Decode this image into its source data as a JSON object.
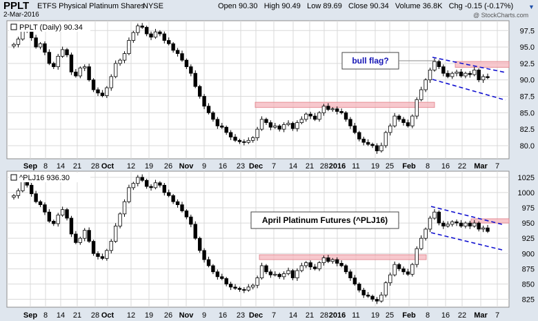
{
  "header": {
    "symbol": "PPLT",
    "name": "ETFS Physical Platinum Shares",
    "exchange": "NYSE",
    "date": "2-Mar-2016",
    "copyright": "@ StockCharts.com",
    "quote": {
      "open_label": "Open",
      "open": "90.30",
      "high_label": "High",
      "high": "90.49",
      "low_label": "Low",
      "low": "89.69",
      "close_label": "Close",
      "close": "90.34",
      "volume_label": "Volume",
      "volume": "36.8K",
      "chg_label": "Chg",
      "chg": "-0.15 (-0.17%)"
    }
  },
  "chart_data": [
    {
      "type": "candlestick",
      "panel_label": "PPLT (Daily) 90.34",
      "ylim": [
        78,
        99
      ],
      "y_ticks": [
        "80.0",
        "82.5",
        "85.0",
        "87.5",
        "90.0",
        "92.5",
        "95.0",
        "97.5"
      ],
      "x_tick_labels": [
        "Sep",
        "8",
        "14",
        "21",
        "28",
        "Oct",
        "12",
        "19",
        "26",
        "Nov",
        "9",
        "16",
        "23",
        "Dec",
        "7",
        "14",
        "21",
        "28",
        "2016",
        "11",
        "19",
        "25",
        "Feb",
        "8",
        "16",
        "22",
        "Mar",
        "7"
      ],
      "closes": [
        95.4,
        96.2,
        97.5,
        97.8,
        96.4,
        95.0,
        95.5,
        94.2,
        92.5,
        92.0,
        93.6,
        94.6,
        93.8,
        91.2,
        90.6,
        91.8,
        92.0,
        90.0,
        88.5,
        88.0,
        87.6,
        88.8,
        90.5,
        92.5,
        93.0,
        94.0,
        96.0,
        97.2,
        98.2,
        98.0,
        97.0,
        96.5,
        97.3,
        97.0,
        96.0,
        95.5,
        94.5,
        94.0,
        93.0,
        92.0,
        91.0,
        89.0,
        87.5,
        86.0,
        85.0,
        84.0,
        83.0,
        82.8,
        82.0,
        81.3,
        80.8,
        80.6,
        80.5,
        80.8,
        81.2,
        82.5,
        84.0,
        83.5,
        82.8,
        83.0,
        82.5,
        83.2,
        83.4,
        82.6,
        83.5,
        84.0,
        84.8,
        84.5,
        84.0,
        85.0,
        86.0,
        85.5,
        85.6,
        85.2,
        85.0,
        84.0,
        83.0,
        82.0,
        81.0,
        80.5,
        80.2,
        80.0,
        79.2,
        80.0,
        82.0,
        83.0,
        84.5,
        84.0,
        83.5,
        83.0,
        84.5,
        87.0,
        88.5,
        90.0,
        91.5,
        92.8,
        92.0,
        91.0,
        90.5,
        91.0,
        91.2,
        90.6,
        91.0,
        90.8,
        91.5,
        90.0,
        90.5,
        90.34
      ],
      "key_levels": [
        {
          "low": 85.8,
          "high": 86.6
        },
        {
          "low": 91.9,
          "high": 92.8
        }
      ],
      "annotation": "bull flag?"
    },
    {
      "type": "candlestick",
      "panel_label": "^PLJ16 936.30",
      "ylim": [
        812,
        1035
      ],
      "y_ticks": [
        "825",
        "850",
        "875",
        "900",
        "925",
        "950",
        "975",
        "1000",
        "1025"
      ],
      "x_tick_labels": [
        "Sep",
        "8",
        "14",
        "21",
        "28",
        "Oct",
        "12",
        "19",
        "26",
        "Nov",
        "9",
        "16",
        "23",
        "Dec",
        "7",
        "14",
        "21",
        "28",
        "2016",
        "11",
        "19",
        "25",
        "Feb",
        "8",
        "16",
        "22",
        "Mar",
        "7"
      ],
      "closes": [
        995,
        1003,
        1020,
        1012,
        998,
        985,
        980,
        968,
        953,
        949,
        963,
        972,
        958,
        932,
        918,
        925,
        938,
        920,
        900,
        895,
        892,
        905,
        920,
        945,
        965,
        985,
        1008,
        1015,
        1025,
        1020,
        1010,
        1008,
        1016,
        1012,
        1000,
        995,
        985,
        980,
        970,
        960,
        948,
        925,
        905,
        890,
        880,
        870,
        862,
        859,
        850,
        845,
        843,
        841,
        840,
        845,
        848,
        860,
        880,
        870,
        865,
        866,
        862,
        867,
        872,
        860,
        872,
        880,
        885,
        878,
        875,
        885,
        893,
        887,
        890,
        884,
        880,
        870,
        860,
        850,
        840,
        832,
        830,
        825,
        822,
        832,
        852,
        865,
        882,
        875,
        870,
        866,
        882,
        908,
        925,
        940,
        958,
        968,
        950,
        945,
        948,
        952,
        950,
        945,
        950,
        945,
        950,
        940,
        942,
        936.3
      ],
      "key_levels": [
        {
          "low": 890,
          "high": 898
        },
        {
          "low": 950,
          "high": 957
        }
      ],
      "annotation": "April Platinum Futures (^PLJ16)"
    }
  ]
}
